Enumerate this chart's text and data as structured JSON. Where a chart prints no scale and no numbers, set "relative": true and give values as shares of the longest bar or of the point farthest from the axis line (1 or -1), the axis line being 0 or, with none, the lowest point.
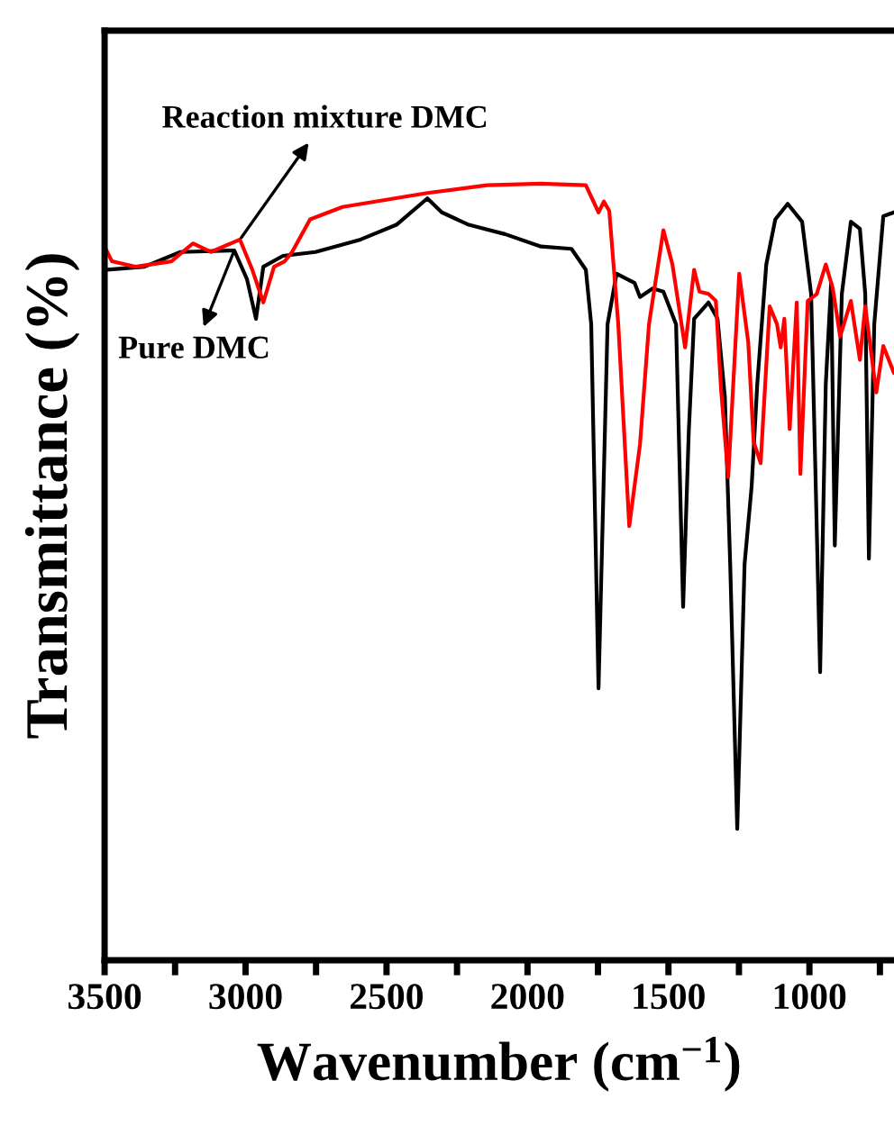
{
  "chart_data": {
    "type": "line",
    "relative": true,
    "xlabel": "Wavenumber (cm$^{−1}$)",
    "ylabel": "Transmittance (%)",
    "xlim": [
      3500,
      700
    ],
    "xticks": [
      3500,
      {
        "value": 3250,
        "label": null
      },
      3000,
      {
        "value": 2750,
        "label": null
      },
      2500,
      {
        "value": 2250,
        "label": null
      },
      2000,
      {
        "value": 1750,
        "label": null
      },
      1500,
      {
        "value": 1250,
        "label": null
      },
      1000,
      {
        "value": 750,
        "label": null
      }
    ],
    "tick_labels": "x",
    "grid": false,
    "legend": false,
    "marker": "none",
    "line_style": "solid",
    "annotations": [
      {
        "text": "Reaction mixture DMC",
        "x": 3020,
        "y": 0.928
      },
      {
        "text": "Pure DMC",
        "x": 3040,
        "y": 0.914
      }
    ],
    "series": [
      {
        "color": "#000000",
        "x": [
          3500,
          3359,
          3231,
          3040,
          2995,
          2963,
          2937,
          2867,
          2752,
          2592,
          2465,
          2355,
          2304,
          2208,
          2080,
          1952,
          1844,
          1793,
          1774,
          1748,
          1716,
          1684,
          1620,
          1601,
          1556,
          1518,
          1473,
          1448,
          1428,
          1409,
          1358,
          1326,
          1300,
          1281,
          1256,
          1230,
          1205,
          1185,
          1153,
          1121,
          1077,
          1026,
          994,
          981,
          962,
          942,
          923,
          910,
          885,
          853,
          821,
          802,
          789,
          770,
          738,
          700
        ],
        "values": [
          0.889,
          0.893,
          0.912,
          0.914,
          0.877,
          0.826,
          0.893,
          0.907,
          0.912,
          0.928,
          0.947,
          0.981,
          0.963,
          0.947,
          0.935,
          0.919,
          0.916,
          0.889,
          0.819,
          0.35,
          0.819,
          0.884,
          0.872,
          0.854,
          0.865,
          0.861,
          0.819,
          0.455,
          0.68,
          0.826,
          0.847,
          0.826,
          0.726,
          0.51,
          0.169,
          0.51,
          0.61,
          0.742,
          0.896,
          0.954,
          0.974,
          0.951,
          0.858,
          0.664,
          0.371,
          0.742,
          0.872,
          0.534,
          0.858,
          0.951,
          0.942,
          0.858,
          0.517,
          0.819,
          0.958,
          0.963
        ]
      },
      {
        "color": "#ff0000",
        "x": [
          3500,
          3474,
          3391,
          3263,
          3187,
          3123,
          3020,
          2976,
          2937,
          2899,
          2861,
          2835,
          2771,
          2656,
          2355,
          2144,
          1953,
          1793,
          1748,
          1729,
          1710,
          1678,
          1639,
          1601,
          1569,
          1518,
          1486,
          1441,
          1409,
          1390,
          1358,
          1332,
          1313,
          1288,
          1249,
          1217,
          1198,
          1173,
          1141,
          1115,
          1102,
          1089,
          1070,
          1045,
          1032,
          1006,
          974,
          942,
          917,
          891,
          853,
          821,
          802,
          763,
          738,
          700
        ],
        "values": [
          0.919,
          0.9,
          0.893,
          0.9,
          0.923,
          0.912,
          0.928,
          0.889,
          0.847,
          0.893,
          0.9,
          0.912,
          0.954,
          0.97,
          0.988,
          0.998,
          1.0,
          0.998,
          0.963,
          0.977,
          0.965,
          0.819,
          0.559,
          0.664,
          0.819,
          0.94,
          0.896,
          0.789,
          0.889,
          0.861,
          0.858,
          0.849,
          0.733,
          0.622,
          0.884,
          0.796,
          0.668,
          0.64,
          0.842,
          0.819,
          0.789,
          0.826,
          0.684,
          0.847,
          0.626,
          0.849,
          0.858,
          0.896,
          0.865,
          0.803,
          0.849,
          0.773,
          0.842,
          0.731,
          0.791,
          0.756
        ]
      }
    ]
  }
}
